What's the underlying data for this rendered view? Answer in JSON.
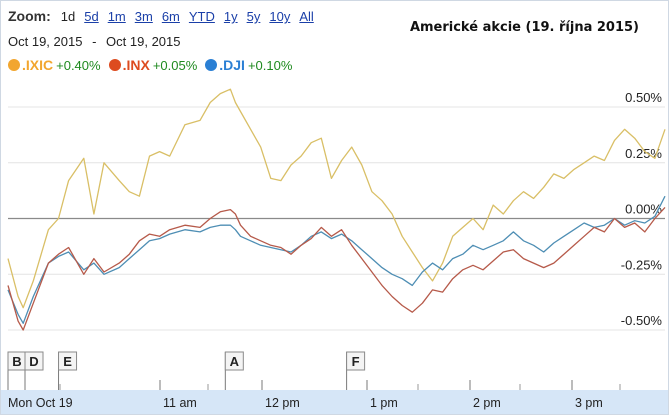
{
  "zoom": {
    "label": "Zoom:",
    "options": [
      "1d",
      "5d",
      "1m",
      "3m",
      "6m",
      "YTD",
      "1y",
      "5y",
      "10y",
      "All"
    ],
    "active": "1d"
  },
  "date_range": {
    "from": "Oct 19, 2015",
    "separator": "-",
    "to": "Oct 19, 2015"
  },
  "legend": [
    {
      "name": ".IXIC",
      "change": "+0.40%",
      "color": "#f2a62f"
    },
    {
      "name": ".INX",
      "change": "+0.05%",
      "color": "#dd4b1f"
    },
    {
      "name": ".DJI",
      "change": "+0.10%",
      "color": "#2a7fd4"
    }
  ],
  "colors": {
    "ixic": "#d9bf66",
    "inx": "#b65a4a",
    "dji": "#4e8eb4",
    "zero": "#8a8a8a",
    "grid": "#e4e4e4",
    "axis_band": "#d6e6f7",
    "positive": "#1f8a1f"
  },
  "chart_data": {
    "type": "line",
    "title": "Americké akcie (19. října 2015)",
    "x_ticks": [
      "Mon Oct 19",
      "11 am",
      "12 pm",
      "1 pm",
      "2 pm",
      "3 pm"
    ],
    "y_ticks": [
      "0.50%",
      "0.25%",
      "0.00%",
      "-0.25%",
      "-0.50%"
    ],
    "y_tick_values": [
      0.5,
      0.25,
      0,
      -0.25,
      -0.5
    ],
    "xlim": [
      9.5,
      16.0
    ],
    "ylim": [
      -0.62,
      0.62
    ],
    "grid": true,
    "events": [
      {
        "label": "B",
        "time": 9.5
      },
      {
        "label": "D",
        "time": 9.65
      },
      {
        "label": "E",
        "time": 10.0
      },
      {
        "label": "A",
        "time": 11.65
      },
      {
        "label": "F",
        "time": 12.85
      }
    ],
    "series": [
      {
        "name": ".IXIC",
        "change": "+0.40%",
        "x": [
          9.5,
          9.6,
          9.65,
          9.75,
          9.9,
          10.0,
          10.1,
          10.25,
          10.35,
          10.45,
          10.6,
          10.7,
          10.8,
          10.9,
          11.0,
          11.1,
          11.25,
          11.4,
          11.5,
          11.6,
          11.7,
          11.75,
          11.8,
          11.9,
          12.0,
          12.1,
          12.2,
          12.3,
          12.4,
          12.5,
          12.6,
          12.7,
          12.8,
          12.9,
          13.0,
          13.1,
          13.2,
          13.3,
          13.4,
          13.5,
          13.6,
          13.7,
          13.8,
          13.9,
          14.0,
          14.1,
          14.2,
          14.3,
          14.4,
          14.5,
          14.6,
          14.7,
          14.8,
          14.9,
          15.0,
          15.1,
          15.2,
          15.3,
          15.4,
          15.5,
          15.6,
          15.7,
          15.8,
          15.9,
          16.0
        ],
        "y": [
          -0.18,
          -0.35,
          -0.4,
          -0.28,
          -0.05,
          0.0,
          0.17,
          0.27,
          0.02,
          0.25,
          0.17,
          0.12,
          0.1,
          0.28,
          0.3,
          0.28,
          0.42,
          0.44,
          0.52,
          0.56,
          0.58,
          0.52,
          0.48,
          0.4,
          0.32,
          0.18,
          0.17,
          0.24,
          0.28,
          0.34,
          0.36,
          0.18,
          0.26,
          0.32,
          0.24,
          0.12,
          0.08,
          0.02,
          -0.08,
          -0.15,
          -0.22,
          -0.28,
          -0.2,
          -0.08,
          -0.04,
          0.0,
          -0.05,
          0.06,
          0.02,
          0.08,
          0.12,
          0.09,
          0.14,
          0.2,
          0.18,
          0.22,
          0.25,
          0.28,
          0.26,
          0.35,
          0.4,
          0.36,
          0.3,
          0.27,
          0.4
        ]
      },
      {
        "name": ".INX",
        "change": "+0.05%",
        "x": [
          9.5,
          9.6,
          9.65,
          9.75,
          9.9,
          10.0,
          10.1,
          10.25,
          10.35,
          10.45,
          10.6,
          10.7,
          10.8,
          10.9,
          11.0,
          11.1,
          11.25,
          11.4,
          11.5,
          11.6,
          11.7,
          11.75,
          11.8,
          11.9,
          12.0,
          12.1,
          12.2,
          12.3,
          12.4,
          12.5,
          12.6,
          12.7,
          12.8,
          12.9,
          13.0,
          13.1,
          13.2,
          13.3,
          13.4,
          13.5,
          13.6,
          13.7,
          13.8,
          13.9,
          14.0,
          14.1,
          14.2,
          14.3,
          14.4,
          14.5,
          14.6,
          14.7,
          14.8,
          14.9,
          15.0,
          15.1,
          15.2,
          15.3,
          15.4,
          15.5,
          15.6,
          15.7,
          15.8,
          15.9,
          16.0
        ],
        "y": [
          -0.3,
          -0.46,
          -0.5,
          -0.38,
          -0.2,
          -0.16,
          -0.13,
          -0.25,
          -0.18,
          -0.24,
          -0.2,
          -0.16,
          -0.1,
          -0.07,
          -0.08,
          -0.05,
          -0.03,
          -0.04,
          0.0,
          0.03,
          0.04,
          0.02,
          -0.03,
          -0.08,
          -0.1,
          -0.12,
          -0.13,
          -0.16,
          -0.12,
          -0.09,
          -0.04,
          -0.08,
          -0.05,
          -0.12,
          -0.18,
          -0.24,
          -0.3,
          -0.35,
          -0.39,
          -0.42,
          -0.38,
          -0.32,
          -0.33,
          -0.27,
          -0.23,
          -0.21,
          -0.23,
          -0.19,
          -0.15,
          -0.14,
          -0.18,
          -0.2,
          -0.22,
          -0.2,
          -0.16,
          -0.12,
          -0.08,
          -0.04,
          -0.06,
          0.0,
          -0.04,
          -0.02,
          -0.06,
          0.0,
          0.05
        ]
      },
      {
        "name": ".DJI",
        "change": "+0.10%",
        "x": [
          9.5,
          9.6,
          9.65,
          9.75,
          9.9,
          10.0,
          10.1,
          10.25,
          10.35,
          10.45,
          10.6,
          10.7,
          10.8,
          10.9,
          11.0,
          11.1,
          11.25,
          11.4,
          11.5,
          11.6,
          11.7,
          11.75,
          11.8,
          11.9,
          12.0,
          12.1,
          12.2,
          12.3,
          12.4,
          12.5,
          12.6,
          12.7,
          12.8,
          12.9,
          13.0,
          13.1,
          13.2,
          13.3,
          13.4,
          13.5,
          13.6,
          13.7,
          13.8,
          13.9,
          14.0,
          14.1,
          14.2,
          14.3,
          14.4,
          14.5,
          14.6,
          14.7,
          14.8,
          14.9,
          15.0,
          15.1,
          15.2,
          15.3,
          15.4,
          15.5,
          15.6,
          15.7,
          15.8,
          15.9,
          16.0
        ],
        "y": [
          -0.32,
          -0.43,
          -0.47,
          -0.35,
          -0.2,
          -0.17,
          -0.15,
          -0.23,
          -0.2,
          -0.25,
          -0.22,
          -0.18,
          -0.14,
          -0.1,
          -0.09,
          -0.07,
          -0.05,
          -0.06,
          -0.04,
          -0.03,
          -0.03,
          -0.05,
          -0.08,
          -0.1,
          -0.12,
          -0.13,
          -0.14,
          -0.15,
          -0.12,
          -0.08,
          -0.06,
          -0.09,
          -0.07,
          -0.1,
          -0.14,
          -0.18,
          -0.22,
          -0.25,
          -0.27,
          -0.3,
          -0.24,
          -0.2,
          -0.23,
          -0.18,
          -0.16,
          -0.12,
          -0.14,
          -0.12,
          -0.1,
          -0.06,
          -0.1,
          -0.12,
          -0.15,
          -0.11,
          -0.08,
          -0.05,
          -0.02,
          -0.04,
          -0.03,
          0.0,
          -0.03,
          -0.01,
          -0.02,
          0.01,
          0.1
        ]
      }
    ]
  }
}
